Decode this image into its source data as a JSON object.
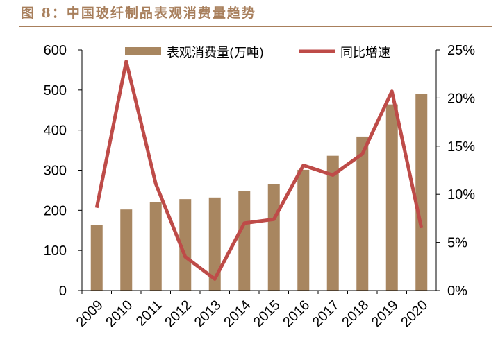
{
  "title": "图 8：中国玻纤制品表观消费量趋势",
  "chart_data": {
    "type": "bar+line",
    "categories": [
      "2009",
      "2010",
      "2011",
      "2012",
      "2013",
      "2014",
      "2015",
      "2016",
      "2017",
      "2018",
      "2019",
      "2020"
    ],
    "series": [
      {
        "name": "表观消费量(万吨)",
        "type": "bar",
        "axis": "left",
        "color": "#a88660",
        "values": [
          163,
          202,
          221,
          228,
          232,
          249,
          266,
          301,
          336,
          384,
          464,
          491
        ]
      },
      {
        "name": "同比增速",
        "type": "line",
        "axis": "right",
        "color": "#be4b48",
        "values": [
          8.6,
          23.8,
          11.1,
          3.5,
          1.2,
          7.0,
          7.4,
          13.0,
          12.0,
          14.2,
          20.7,
          6.5
        ]
      }
    ],
    "left_axis": {
      "ylim": [
        0,
        600
      ],
      "ticks": [
        "0",
        "100",
        "200",
        "300",
        "400",
        "500",
        "600"
      ]
    },
    "right_axis": {
      "ylim": [
        0,
        25
      ],
      "ticks": [
        "0%",
        "5%",
        "10%",
        "15%",
        "20%",
        "25%"
      ]
    },
    "legend": "top",
    "grid": false
  }
}
